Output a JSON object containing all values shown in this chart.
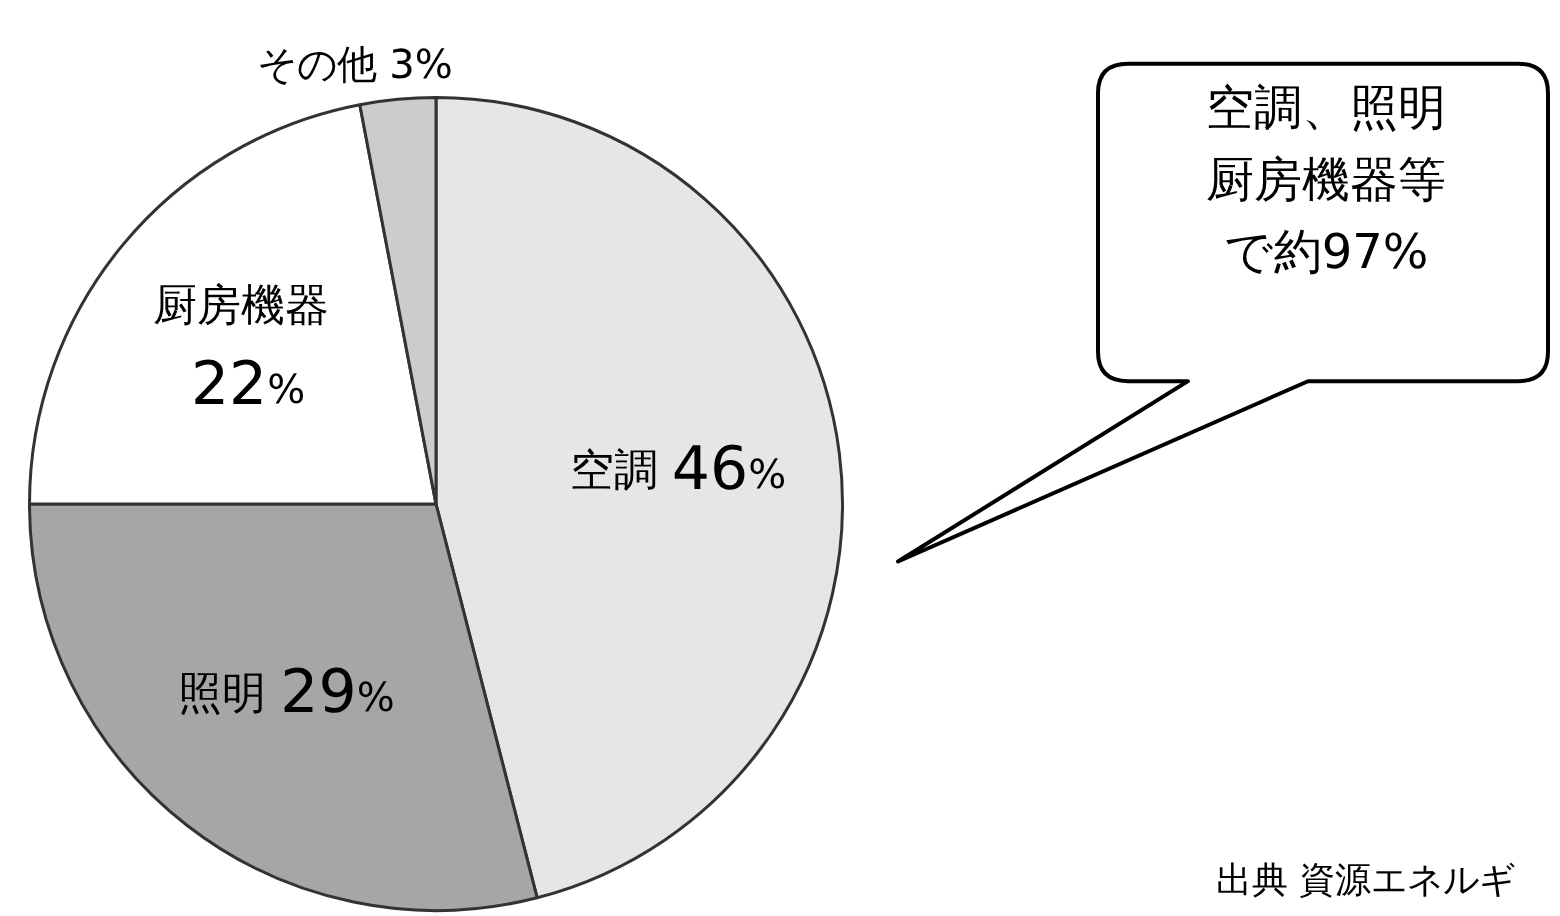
{
  "chart_data": {
    "type": "pie",
    "categories": [
      "空調",
      "照明",
      "厨房機器",
      "その他"
    ],
    "values": [
      46,
      29,
      22,
      3
    ],
    "colors": [
      "#e6e6e6",
      "#a6a6a6",
      "#ffffff",
      "#cccccc"
    ],
    "value_labels": [
      "46%",
      "29%",
      "22%",
      "3%"
    ],
    "legend": false,
    "annotations": [
      "空調、照明厨房機器等で約97%",
      "出典 資源エネルギ"
    ]
  }
}
